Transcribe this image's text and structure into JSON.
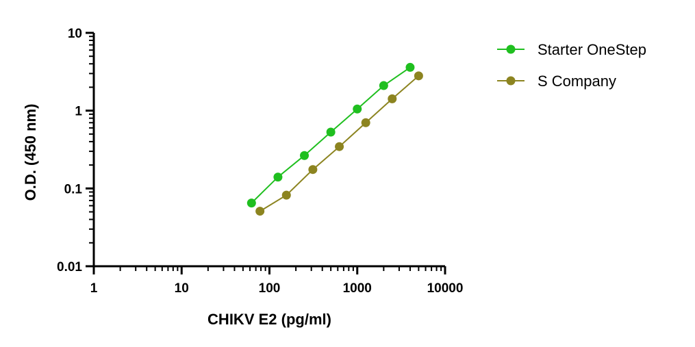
{
  "chart_data": {
    "type": "line",
    "xlabel": "CHIKV E2 (pg/ml)",
    "ylabel": "O.D. (450 nm)",
    "xscale": "log",
    "yscale": "log",
    "xlim": [
      1,
      10000
    ],
    "ylim": [
      0.01,
      10
    ],
    "xticks": [
      "1",
      "10",
      "100",
      "1000",
      "10000"
    ],
    "yticks": [
      "0.01",
      "0.1",
      "1",
      "10"
    ],
    "grid": false,
    "legend_position": "top-right",
    "series": [
      {
        "name": "Starter OneStep",
        "color": "#1fbf1f",
        "points": [
          {
            "x": 62.5,
            "y": 0.065
          },
          {
            "x": 125,
            "y": 0.14
          },
          {
            "x": 250,
            "y": 0.265
          },
          {
            "x": 500,
            "y": 0.53
          },
          {
            "x": 1000,
            "y": 1.05
          },
          {
            "x": 2000,
            "y": 2.1
          },
          {
            "x": 4000,
            "y": 3.6
          }
        ]
      },
      {
        "name": "S Company",
        "color": "#8c8420",
        "points": [
          {
            "x": 78,
            "y": 0.051
          },
          {
            "x": 156,
            "y": 0.082
          },
          {
            "x": 312,
            "y": 0.175
          },
          {
            "x": 625,
            "y": 0.345
          },
          {
            "x": 1250,
            "y": 0.7
          },
          {
            "x": 2500,
            "y": 1.42
          },
          {
            "x": 5000,
            "y": 2.8
          }
        ]
      }
    ]
  }
}
